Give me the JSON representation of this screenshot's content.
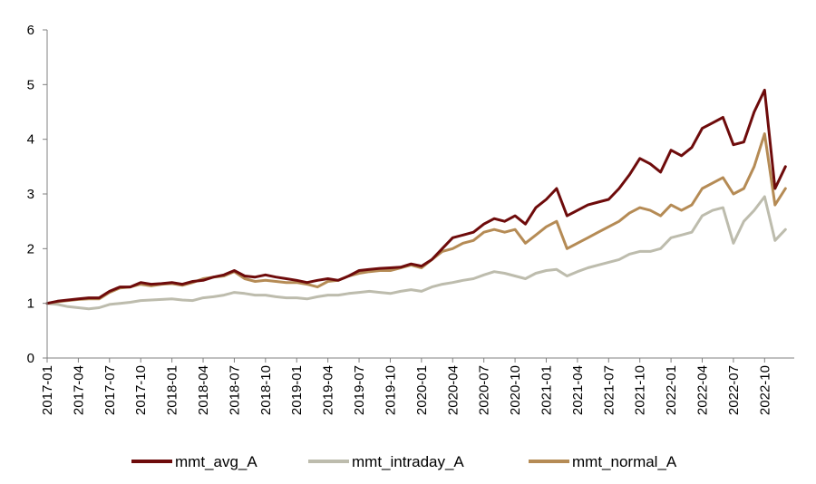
{
  "chart_data": {
    "type": "line",
    "title": "",
    "xlabel": "",
    "ylabel": "",
    "ylim": [
      0,
      6
    ],
    "y_ticks": [
      "0",
      "1",
      "2",
      "3",
      "4",
      "5",
      "6"
    ],
    "x_range": [
      "2017-01",
      "2022-12"
    ],
    "x_ticks": [
      "2017-01",
      "2017-04",
      "2017-07",
      "2017-10",
      "2018-01",
      "2018-04",
      "2018-07",
      "2018-10",
      "2019-01",
      "2019-04",
      "2019-07",
      "2019-10",
      "2020-01",
      "2020-04",
      "2020-07",
      "2020-10",
      "2021-01",
      "2021-04",
      "2021-07",
      "2021-10",
      "2022-01",
      "2022-04",
      "2022-07",
      "2022-10"
    ],
    "grid": false,
    "legend_position": "bottom",
    "x": [
      "2017-01",
      "2017-02",
      "2017-03",
      "2017-04",
      "2017-05",
      "2017-06",
      "2017-07",
      "2017-08",
      "2017-09",
      "2017-10",
      "2017-11",
      "2017-12",
      "2018-01",
      "2018-02",
      "2018-03",
      "2018-04",
      "2018-05",
      "2018-06",
      "2018-07",
      "2018-08",
      "2018-09",
      "2018-10",
      "2018-11",
      "2018-12",
      "2019-01",
      "2019-02",
      "2019-03",
      "2019-04",
      "2019-05",
      "2019-06",
      "2019-07",
      "2019-08",
      "2019-09",
      "2019-10",
      "2019-11",
      "2019-12",
      "2020-01",
      "2020-02",
      "2020-03",
      "2020-04",
      "2020-05",
      "2020-06",
      "2020-07",
      "2020-08",
      "2020-09",
      "2020-10",
      "2020-11",
      "2020-12",
      "2021-01",
      "2021-02",
      "2021-03",
      "2021-04",
      "2021-05",
      "2021-06",
      "2021-07",
      "2021-08",
      "2021-09",
      "2021-10",
      "2021-11",
      "2021-12",
      "2022-01",
      "2022-02",
      "2022-03",
      "2022-04",
      "2022-05",
      "2022-06",
      "2022-07",
      "2022-08",
      "2022-09",
      "2022-10",
      "2022-11",
      "2022-12"
    ],
    "series": [
      {
        "name": "mmt_avg_A",
        "color": "#6e0b0b",
        "values": [
          1.0,
          1.04,
          1.06,
          1.08,
          1.1,
          1.1,
          1.22,
          1.3,
          1.3,
          1.38,
          1.35,
          1.36,
          1.38,
          1.35,
          1.4,
          1.42,
          1.48,
          1.52,
          1.6,
          1.5,
          1.48,
          1.52,
          1.48,
          1.45,
          1.42,
          1.38,
          1.42,
          1.45,
          1.42,
          1.5,
          1.6,
          1.62,
          1.64,
          1.65,
          1.66,
          1.72,
          1.68,
          1.8,
          2.0,
          2.2,
          2.25,
          2.3,
          2.45,
          2.55,
          2.5,
          2.6,
          2.45,
          2.75,
          2.9,
          3.1,
          2.6,
          2.7,
          2.8,
          2.85,
          2.9,
          3.1,
          3.35,
          3.65,
          3.55,
          3.4,
          3.8,
          3.7,
          3.85,
          4.2,
          4.3,
          4.4,
          3.9,
          3.95,
          4.5,
          4.9,
          3.1,
          3.5
        ]
      },
      {
        "name": "mmt_intraday_A",
        "color": "#bdbcad",
        "values": [
          1.0,
          0.98,
          0.94,
          0.92,
          0.9,
          0.92,
          0.98,
          1.0,
          1.02,
          1.05,
          1.06,
          1.07,
          1.08,
          1.06,
          1.05,
          1.1,
          1.12,
          1.15,
          1.2,
          1.18,
          1.15,
          1.15,
          1.12,
          1.1,
          1.1,
          1.08,
          1.12,
          1.15,
          1.15,
          1.18,
          1.2,
          1.22,
          1.2,
          1.18,
          1.22,
          1.25,
          1.22,
          1.3,
          1.35,
          1.38,
          1.42,
          1.45,
          1.52,
          1.58,
          1.55,
          1.5,
          1.45,
          1.55,
          1.6,
          1.62,
          1.5,
          1.58,
          1.65,
          1.7,
          1.75,
          1.8,
          1.9,
          1.95,
          1.95,
          2.0,
          2.2,
          2.25,
          2.3,
          2.6,
          2.7,
          2.75,
          2.1,
          2.5,
          2.7,
          2.95,
          2.15,
          2.35
        ]
      },
      {
        "name": "mmt_normal_A",
        "color": "#b58b55",
        "values": [
          1.0,
          1.03,
          1.05,
          1.07,
          1.08,
          1.08,
          1.2,
          1.28,
          1.3,
          1.35,
          1.32,
          1.35,
          1.36,
          1.33,
          1.38,
          1.45,
          1.48,
          1.5,
          1.58,
          1.45,
          1.4,
          1.42,
          1.4,
          1.38,
          1.38,
          1.35,
          1.3,
          1.4,
          1.42,
          1.5,
          1.55,
          1.58,
          1.6,
          1.6,
          1.65,
          1.7,
          1.65,
          1.8,
          1.95,
          2.0,
          2.1,
          2.15,
          2.3,
          2.35,
          2.3,
          2.35,
          2.1,
          2.25,
          2.4,
          2.5,
          2.0,
          2.1,
          2.2,
          2.3,
          2.4,
          2.5,
          2.65,
          2.75,
          2.7,
          2.6,
          2.8,
          2.7,
          2.8,
          3.1,
          3.2,
          3.3,
          3.0,
          3.1,
          3.5,
          4.1,
          2.8,
          3.1
        ]
      }
    ]
  }
}
